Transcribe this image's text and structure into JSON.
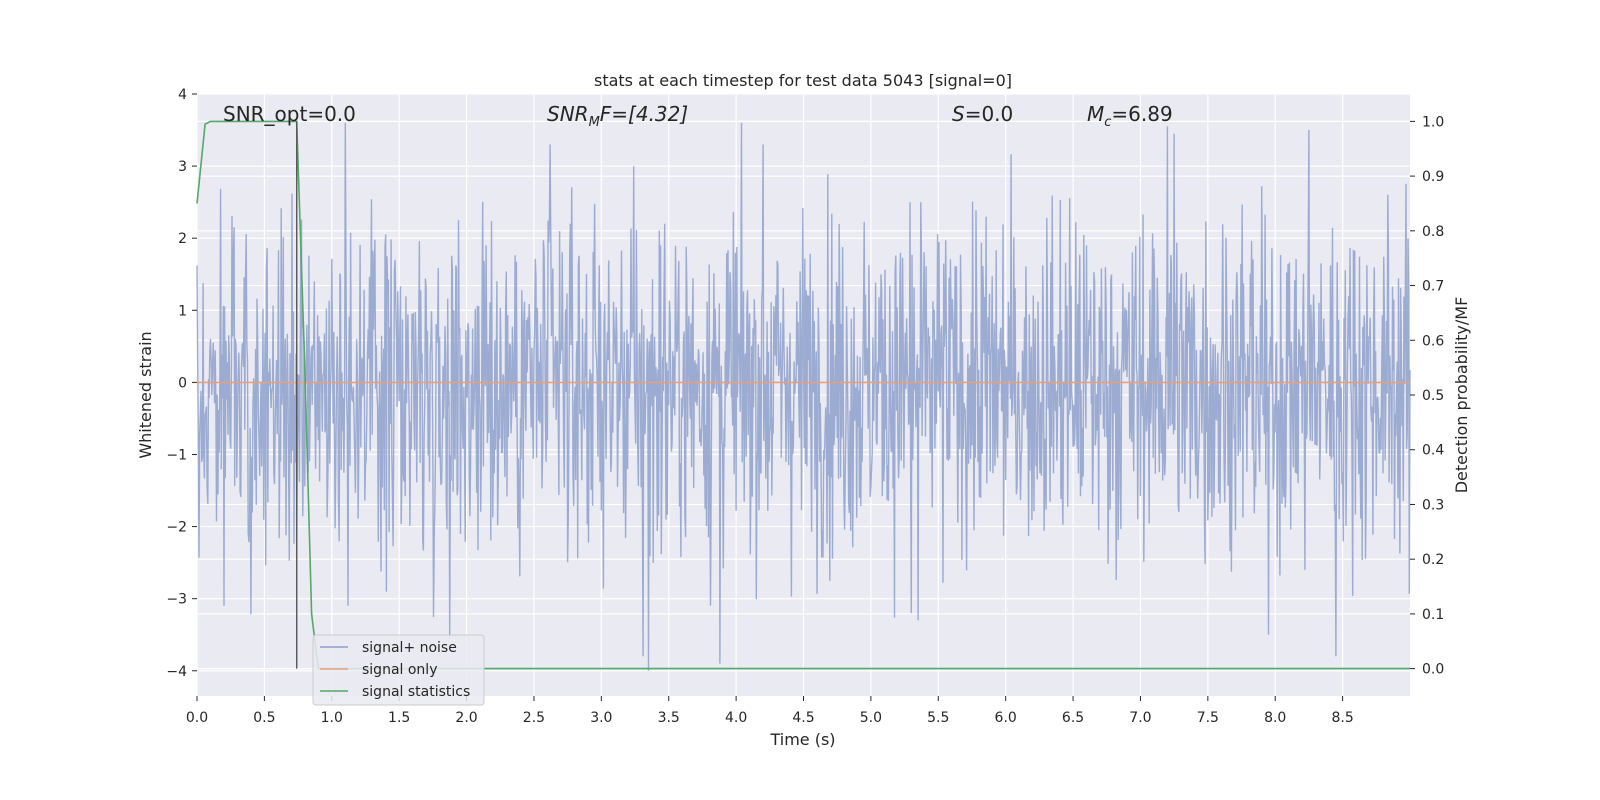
{
  "chart_data": {
    "type": "line",
    "title": "stats at each timestep for test data 5043 [signal=0]",
    "xlabel": "Time (s)",
    "ylabel": "Whitened strain",
    "y2label": "Detection probability/MF",
    "xlim": [
      0.0,
      9.0
    ],
    "ylim": [
      -4.35,
      4.0
    ],
    "y2lim": [
      -0.05,
      1.05
    ],
    "grid": true,
    "background": "#eaeaf2",
    "legend_position": "lower-left",
    "xticks": [
      0.0,
      0.5,
      1.0,
      1.5,
      2.0,
      2.5,
      3.0,
      3.5,
      4.0,
      4.5,
      5.0,
      5.5,
      6.0,
      6.5,
      7.0,
      7.5,
      8.0,
      8.5
    ],
    "xtick_labels": [
      "0.0",
      "0.5",
      "1.0",
      "1.5",
      "2.0",
      "2.5",
      "3.0",
      "3.5",
      "4.0",
      "4.5",
      "5.0",
      "5.5",
      "6.0",
      "6.5",
      "7.0",
      "7.5",
      "8.0",
      "8.5"
    ],
    "yticks": [
      -4,
      -3,
      -2,
      -1,
      0,
      1,
      2,
      3,
      4
    ],
    "ytick_labels": [
      "−4",
      "−3",
      "−2",
      "−1",
      "0",
      "1",
      "2",
      "3",
      "4"
    ],
    "y2ticks": [
      0.0,
      0.1,
      0.2,
      0.3,
      0.4,
      0.5,
      0.6,
      0.7,
      0.8,
      0.9,
      1.0
    ],
    "y2tick_labels": [
      "0.0",
      "0.1",
      "0.2",
      "0.3",
      "0.4",
      "0.5",
      "0.6",
      "0.7",
      "0.8",
      "0.9",
      "1.0"
    ],
    "annotations": {
      "snr_opt": "SNR_opt=0.0",
      "snr_mf_main": "SNR",
      "snr_mf_sub": "M",
      "snr_mf_rest": "F=[4.32]",
      "s_main": "S",
      "s_rest": "=0.0",
      "mc_main": "M",
      "mc_sub": "c",
      "mc_rest": "=6.89"
    },
    "series": [
      {
        "name": "signal+ noise",
        "color": "#8da0cb",
        "kind": "noise",
        "sample_rate_hz": 200,
        "envelope": {
          "typical_amplitude": 1.3,
          "max_positive_peak": 3.6,
          "max_negative_peak": -4.0
        },
        "notable_peaks": [
          {
            "x": 0.2,
            "y": -3.1
          },
          {
            "x": 1.1,
            "y": 3.6
          },
          {
            "x": 2.62,
            "y": 3.3
          },
          {
            "x": 3.31,
            "y": -3.8
          },
          {
            "x": 3.35,
            "y": -4.0
          },
          {
            "x": 3.88,
            "y": -3.9
          },
          {
            "x": 4.2,
            "y": 3.3
          },
          {
            "x": 5.3,
            "y": -3.2
          },
          {
            "x": 5.35,
            "y": -3.3
          },
          {
            "x": 7.2,
            "y": 3.55
          },
          {
            "x": 7.25,
            "y": 3.45
          },
          {
            "x": 7.95,
            "y": -3.5
          },
          {
            "x": 8.25,
            "y": 3.5
          },
          {
            "x": 8.45,
            "y": -3.8
          }
        ]
      },
      {
        "name": "signal only",
        "color": "#e5a07e",
        "kind": "line",
        "x": [
          0.0,
          9.0
        ],
        "y": [
          0.0,
          0.0
        ]
      },
      {
        "name": "signal statistics",
        "color": "#55a868",
        "kind": "line",
        "axis": "right",
        "x": [
          0.0,
          0.06,
          0.1,
          0.2,
          0.3,
          0.4,
          0.5,
          0.6,
          0.7,
          0.74,
          0.8,
          0.85,
          0.9,
          1.0,
          1.5,
          2.0,
          3.0,
          4.0,
          5.0,
          6.0,
          7.0,
          8.0,
          9.0
        ],
        "y": [
          0.85,
          0.995,
          1.0,
          1.0,
          1.0,
          1.0,
          1.0,
          1.0,
          1.0,
          1.0,
          0.55,
          0.1,
          0.0,
          0.0,
          0.0,
          0.0,
          0.0,
          0.0,
          0.0,
          0.0,
          0.0,
          0.0,
          0.0
        ]
      }
    ],
    "vline": {
      "x": 0.74,
      "color": "#555555"
    }
  }
}
